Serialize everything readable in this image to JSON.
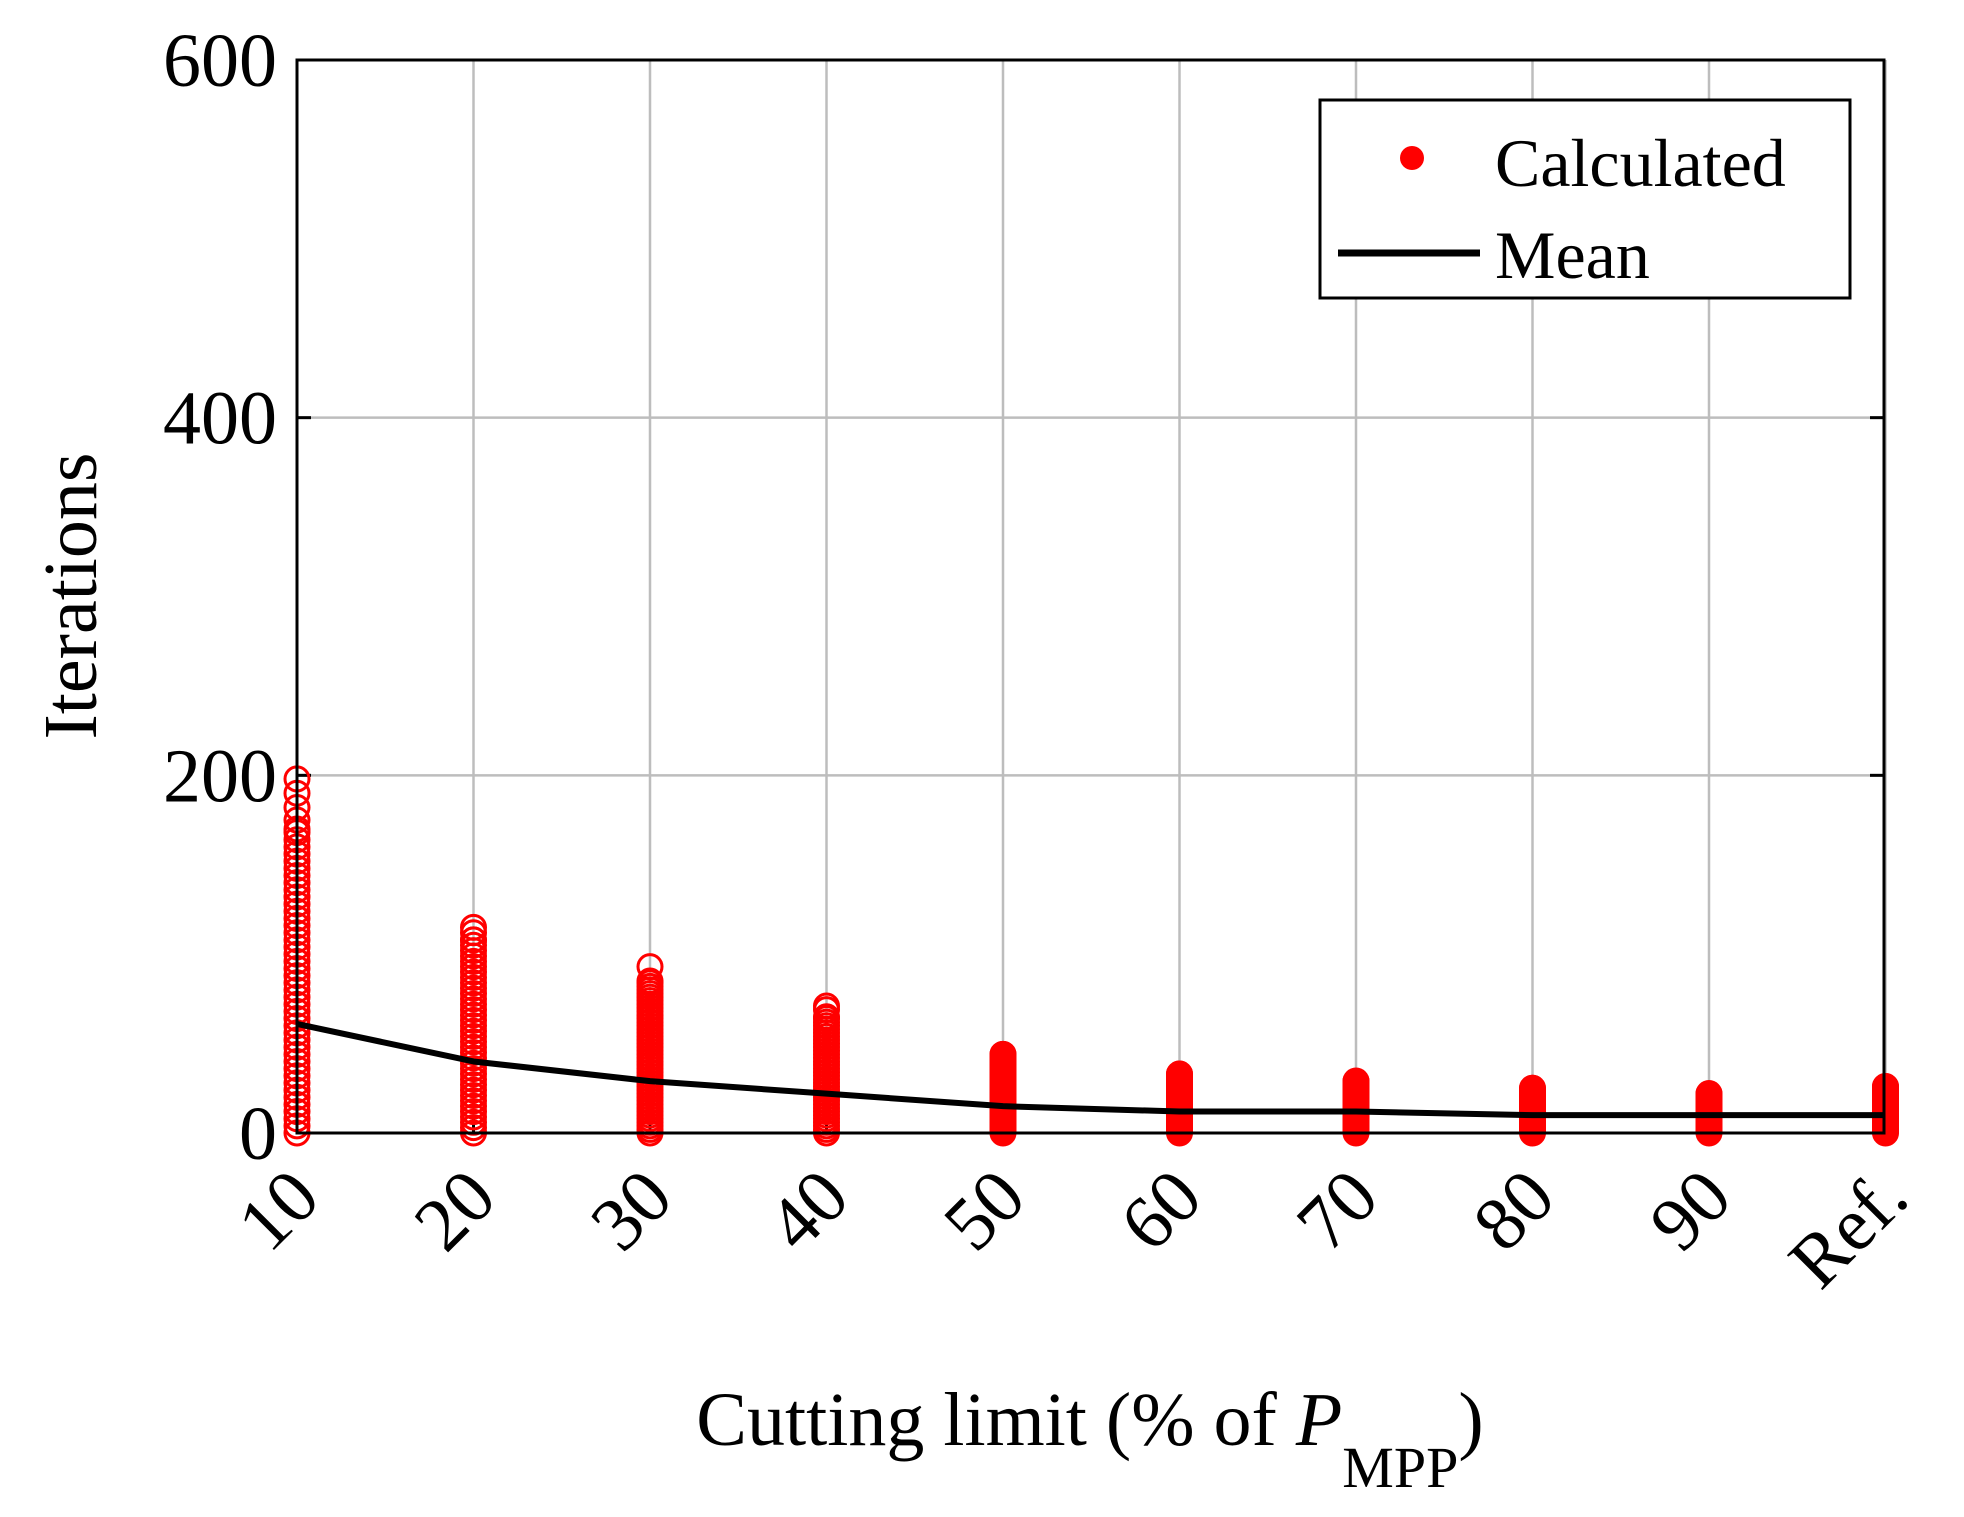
{
  "chart_data": {
    "type": "scatter",
    "xlabel_prefix": "Cutting limit (% of ",
    "xlabel_var": "P",
    "xlabel_sub": "MPP",
    "xlabel_suffix": ")",
    "ylabel": "Iterations",
    "ylim": [
      0,
      600
    ],
    "yticks": [
      "0",
      "200",
      "400",
      "600"
    ],
    "categories": [
      "10",
      "20",
      "30",
      "40",
      "50",
      "60",
      "70",
      "80",
      "90",
      "Ref."
    ],
    "grid": true,
    "legend_position": "top-right",
    "series": [
      {
        "name": "Calculated",
        "kind": "markers",
        "color": "#ff0000",
        "min": [
          0,
          0,
          0,
          0,
          0,
          0,
          0,
          0,
          0,
          0
        ],
        "max": [
          170,
          108,
          85,
          65,
          44,
          33,
          29,
          25,
          22,
          26
        ],
        "outliers": [
          [
            198,
            190,
            182,
            175
          ],
          [
            115,
            112
          ],
          [
            93
          ],
          [
            71,
            69
          ],
          [],
          [],
          [],
          [],
          [],
          []
        ]
      },
      {
        "name": "Mean",
        "kind": "line",
        "color": "#000000",
        "values": [
          61,
          40,
          29,
          22,
          15,
          12,
          12,
          10,
          10,
          10
        ]
      }
    ]
  }
}
